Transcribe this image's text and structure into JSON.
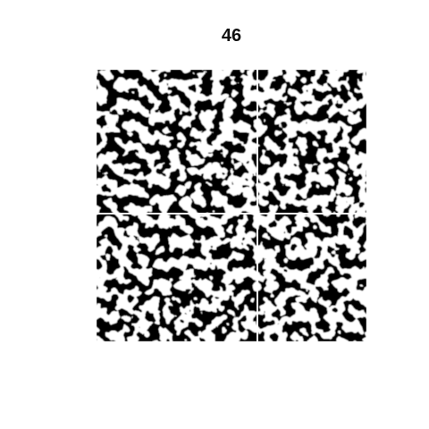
{
  "figure": {
    "title": "46",
    "image_description_name": "binary-noise-pattern",
    "colors": {
      "ink": "#1a1a1a",
      "paper": "#ffffff"
    }
  }
}
